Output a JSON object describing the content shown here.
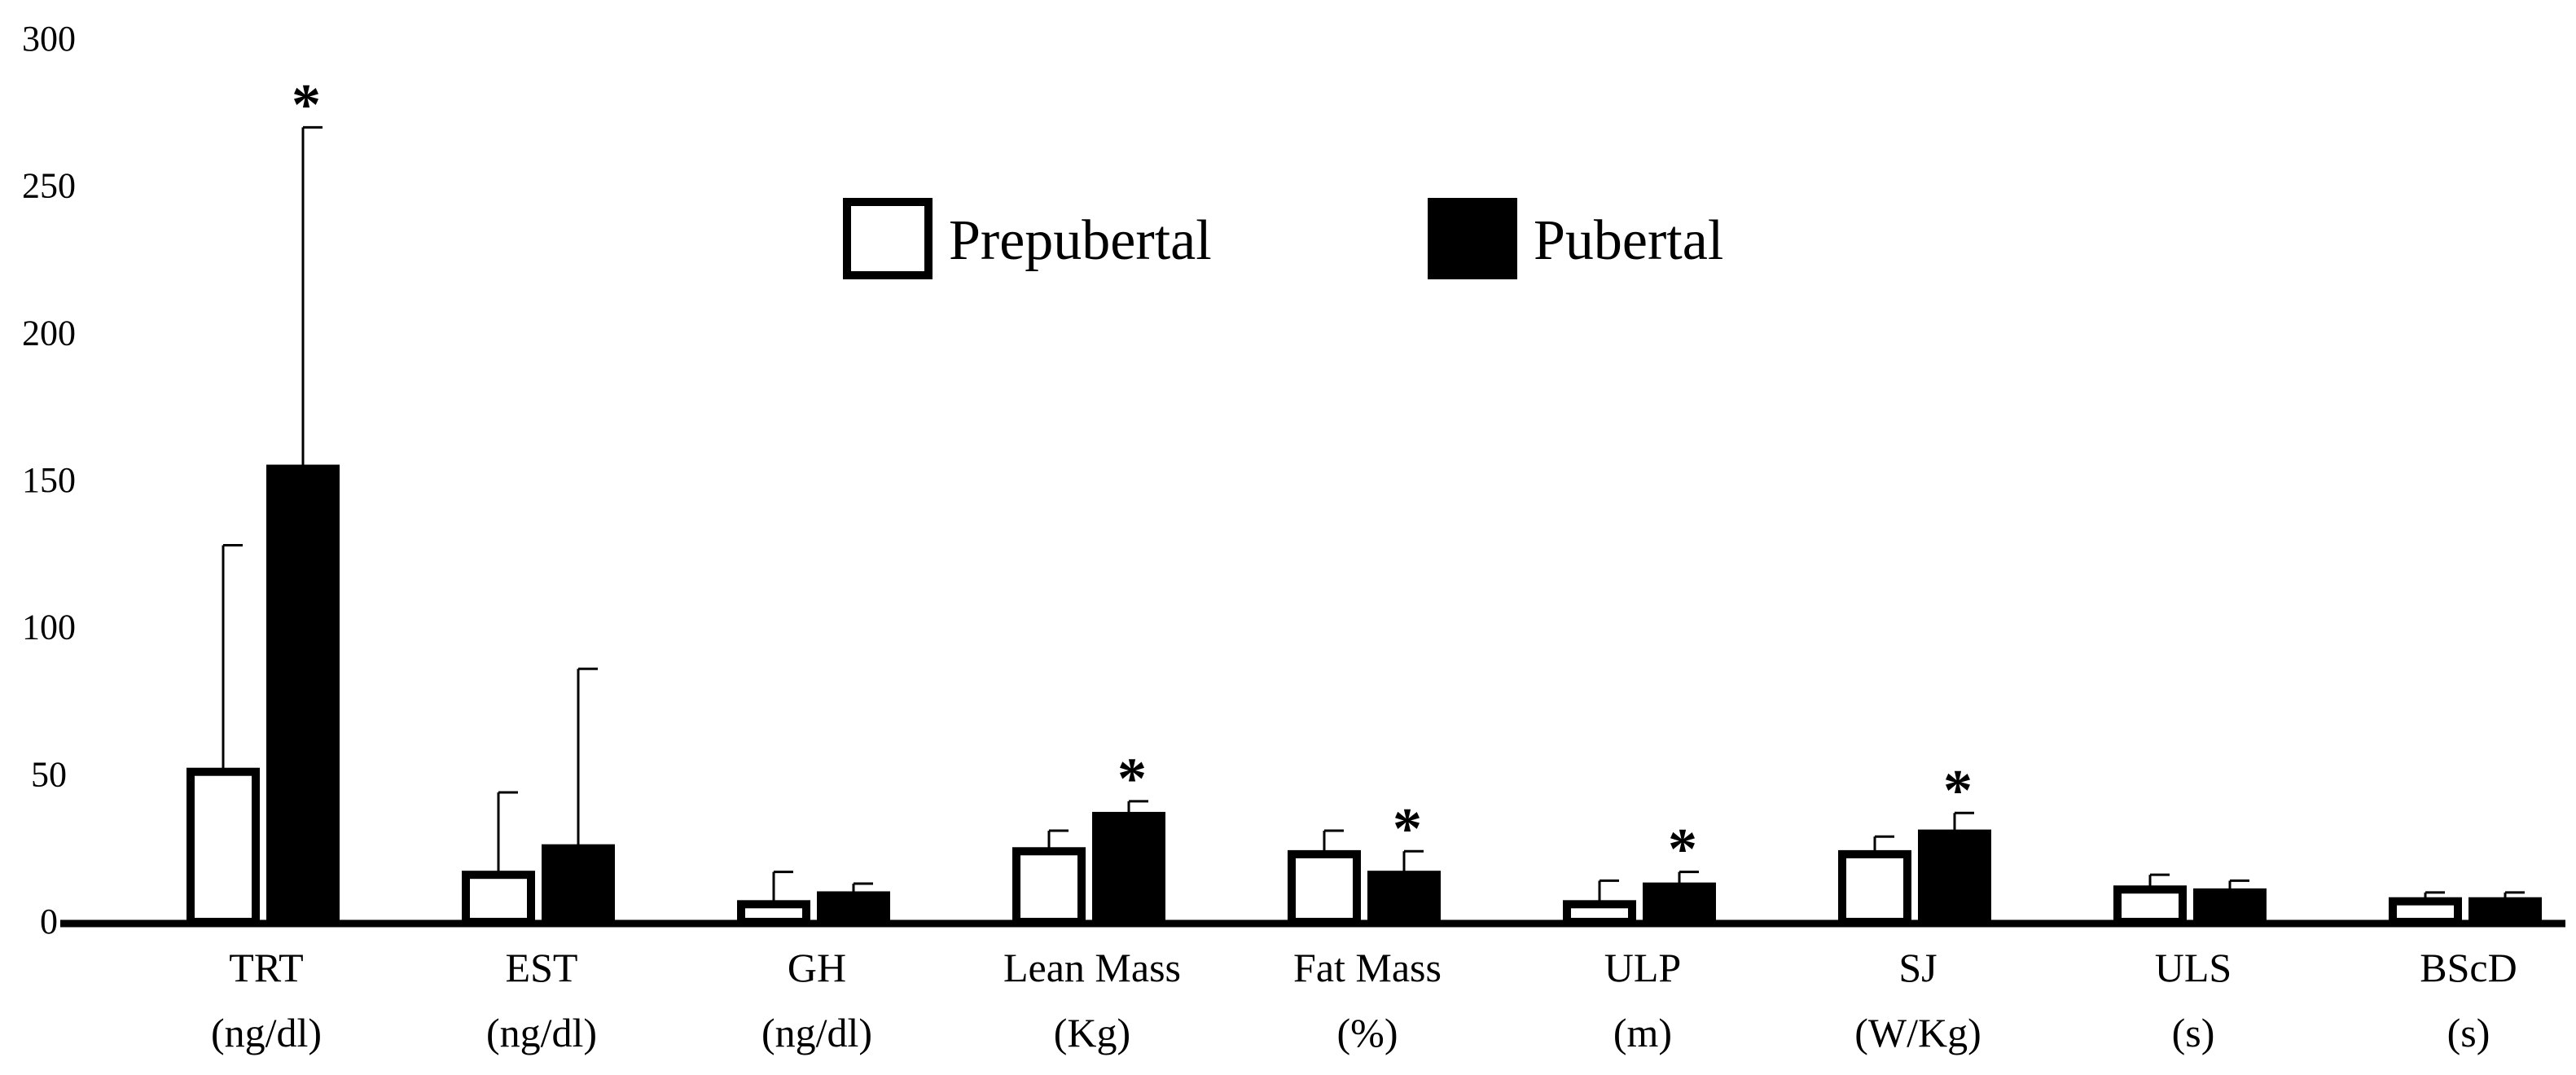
{
  "chart_data": {
    "type": "bar",
    "title": "",
    "xlabel": "",
    "ylabel": "",
    "ylim": [
      0,
      300
    ],
    "yticks": [
      0,
      50,
      100,
      150,
      200,
      250,
      300
    ],
    "grid": false,
    "legend_position": "top-center",
    "categories": [
      {
        "name": "TRT",
        "unit": "(ng/dl)"
      },
      {
        "name": "EST",
        "unit": "(ng/dl)"
      },
      {
        "name": "GH",
        "unit": "(ng/dl)"
      },
      {
        "name": "Lean Mass",
        "unit": "(Kg)"
      },
      {
        "name": "Fat Mass",
        "unit": "(%)"
      },
      {
        "name": "ULP",
        "unit": "(m)"
      },
      {
        "name": "SJ",
        "unit": "(W/Kg)"
      },
      {
        "name": "ULS",
        "unit": "(s)"
      },
      {
        "name": "BScD",
        "unit": "(s)"
      }
    ],
    "series": [
      {
        "name": "Prepubertal",
        "fill": "#ffffff",
        "stroke": "#000000",
        "values": [
          51,
          16,
          6,
          24,
          23,
          6,
          23,
          11,
          7
        ],
        "errors": [
          77,
          28,
          11,
          7,
          8,
          8,
          6,
          5,
          3
        ]
      },
      {
        "name": "Pubertal",
        "fill": "#000000",
        "stroke": "#000000",
        "values": [
          154,
          25,
          9,
          36,
          16,
          12,
          30,
          10,
          7
        ],
        "errors": [
          116,
          61,
          4,
          5,
          8,
          5,
          7,
          4,
          3
        ]
      }
    ],
    "significance": {
      "marker": "*",
      "flags": [
        true,
        false,
        false,
        true,
        true,
        true,
        true,
        false,
        false
      ]
    }
  }
}
